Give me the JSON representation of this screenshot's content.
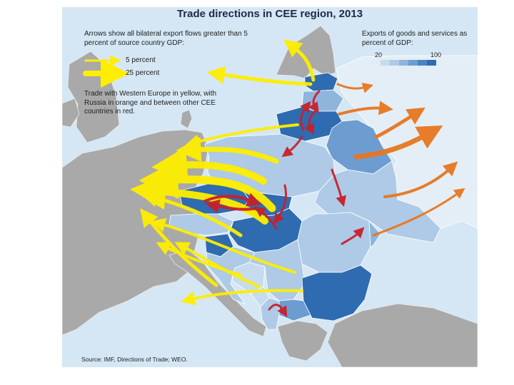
{
  "title": "Trade directions in CEE region, 2013",
  "legend": {
    "arrows_note": "Arrows show all bilateral export flows greater than 5 percent of source country GDP:",
    "small_arrow_label": "5 percent",
    "large_arrow_label": "25 percent",
    "colors_note": "Trade with Western Europe in yellow, with Russia in orange and between other CEE countries in red."
  },
  "color_scale": {
    "title": "Exports of goods and services as percent of GDP:",
    "min_label": "20",
    "max_label": "100",
    "colors": [
      "#e0ecf8",
      "#c7dbef",
      "#aecae6",
      "#8fb5dc",
      "#6d9dd0",
      "#4b84c3",
      "#2f6bb0"
    ]
  },
  "colors": {
    "sea": "#d5e7f4",
    "land_other": "#a9a9a9",
    "western_europe_arrows": "#ffee00",
    "russia_arrows": "#e8761e",
    "cee_arrows": "#c8202a"
  },
  "source": "Source: IMF, Directions of Trade; WEO."
}
